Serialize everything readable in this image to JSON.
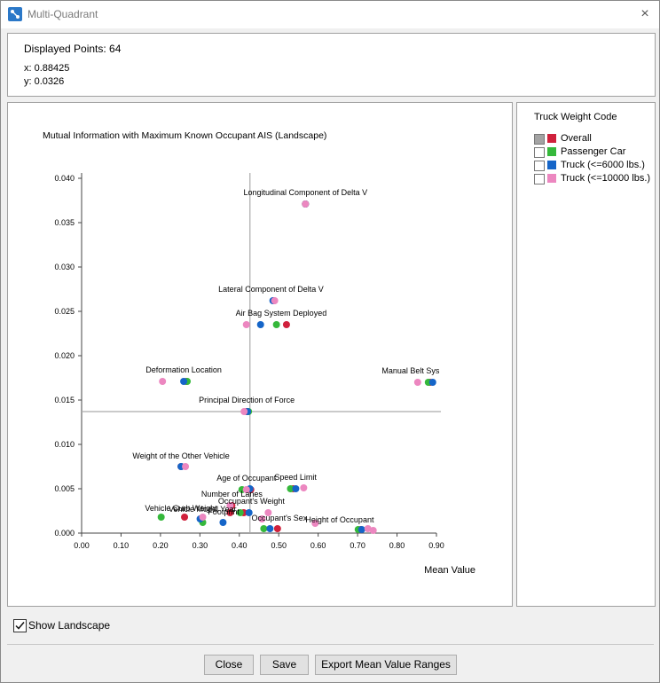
{
  "window": {
    "title": "Multi-Quadrant",
    "close_icon": "×"
  },
  "info": {
    "displayed_points": "Displayed Points: 64",
    "x": "x: 0.88425",
    "y": "y: 0.0326"
  },
  "legend": {
    "title": "Truck Weight Code",
    "items": [
      {
        "label": "Overall",
        "color": "#d0213c",
        "checked": "indeterminate"
      },
      {
        "label": "Passenger Car",
        "color": "#35b83b",
        "checked": false
      },
      {
        "label": "Truck (<=6000 lbs.)",
        "color": "#1565c8",
        "checked": false
      },
      {
        "label": "Truck (<=10000 lbs.)",
        "color": "#ec87c0",
        "checked": false
      }
    ]
  },
  "show_landscape": {
    "label": "Show Landscape",
    "checked": true
  },
  "buttons": {
    "close": "Close",
    "save": "Save",
    "export": "Export Mean Value Ranges"
  },
  "chart_data": {
    "type": "scatter",
    "title": "Mutual Information with Maximum Known Occupant AIS (Landscape)",
    "xlabel": "Mean Value",
    "ylabel": "",
    "xlim": [
      0.0,
      0.9
    ],
    "ylim": [
      0.0,
      0.04
    ],
    "x_ticks": [
      "0.00",
      "0.10",
      "0.20",
      "0.30",
      "0.40",
      "0.50",
      "0.60",
      "0.70",
      "0.80",
      "0.90"
    ],
    "y_ticks": [
      "0.000",
      "0.005",
      "0.010",
      "0.015",
      "0.020",
      "0.025",
      "0.030",
      "0.035",
      "0.040"
    ],
    "quadrant_lines": {
      "x": 0.427,
      "y": 0.0137
    },
    "grid": false,
    "legend": "right panel",
    "colors": {
      "Overall": "#d0213c",
      "Passenger Car": "#35b83b",
      "Truck (<=6000 lbs.)": "#1565c8",
      "Truck (<=10000 lbs.)": "#ec87c0"
    },
    "labels": [
      {
        "text": "Longitudinal Component of Delta V",
        "x": 0.5677,
        "y": 0.0381
      },
      {
        "text": "Lateral Component of Delta V",
        "x": 0.4803,
        "y": 0.0272
      },
      {
        "text": "Air Bag System Deployed",
        "x": 0.5061,
        "y": 0.0245
      },
      {
        "text": "Deformation Location",
        "x": 0.2589,
        "y": 0.0181
      },
      {
        "text": "Manual Belt Sys",
        "x": 0.8345,
        "y": 0.018
      },
      {
        "text": "Principal Direction of Force",
        "x": 0.4189,
        "y": 0.0147
      },
      {
        "text": "Weight of the Other Vehicle",
        "x": 0.2522,
        "y": 0.0084
      },
      {
        "text": "Age of Occupant",
        "x": 0.4179,
        "y": 0.0059
      },
      {
        "text": "Speed Limit",
        "x": 0.5426,
        "y": 0.006
      },
      {
        "text": "Number of Lanes",
        "x": 0.3811,
        "y": 0.0041
      },
      {
        "text": "Occupant's Weight",
        "x": 0.4306,
        "y": 0.0033
      },
      {
        "text": "Vehicle Curb Weight",
        "x": 0.2522,
        "y": 0.0025
      },
      {
        "text": "Vehicle Model Year",
        "x": 0.3065,
        "y": 0.0024
      },
      {
        "text": "Footprint",
        "x": 0.3602,
        "y": 0.0021
      },
      {
        "text": "Occupant's Sex",
        "x": 0.5016,
        "y": 0.0014
      },
      {
        "text": "Height of Occupant",
        "x": 0.6546,
        "y": 0.0012
      }
    ],
    "series": [
      {
        "name": "Overall",
        "points": [
          [
            0.5677,
            0.0371
          ],
          [
            0.4875,
            0.0262
          ],
          [
            0.5196,
            0.0235
          ],
          [
            0.2656,
            0.0171
          ],
          [
            0.8838,
            0.017
          ],
          [
            0.4189,
            0.0137
          ],
          [
            0.2522,
            0.0075
          ],
          [
            0.4291,
            0.0049
          ],
          [
            0.5365,
            0.005
          ],
          [
            0.3811,
            0.0031
          ],
          [
            0.3766,
            0.0023
          ],
          [
            0.2611,
            0.0018
          ],
          [
            0.3027,
            0.0016
          ],
          [
            0.4112,
            0.0023
          ],
          [
            0.4969,
            0.0005
          ],
          [
            0.7082,
            0.0004
          ]
        ]
      },
      {
        "name": "Passenger Car",
        "points": [
          [
            0.5677,
            0.0371
          ],
          [
            0.4942,
            0.0235
          ],
          [
            0.2678,
            0.0171
          ],
          [
            0.8793,
            0.017
          ],
          [
            0.4234,
            0.0137
          ],
          [
            0.4067,
            0.0049
          ],
          [
            0.5298,
            0.005
          ],
          [
            0.4022,
            0.0023
          ],
          [
            0.2018,
            0.0018
          ],
          [
            0.3072,
            0.0012
          ],
          [
            0.4621,
            0.0005
          ],
          [
            0.7015,
            0.0004
          ]
        ]
      },
      {
        "name": "Truck (<=6000 lbs.)",
        "points": [
          [
            0.5677,
            0.0371
          ],
          [
            0.4852,
            0.0262
          ],
          [
            0.4539,
            0.0235
          ],
          [
            0.2589,
            0.0171
          ],
          [
            0.8905,
            0.017
          ],
          [
            0.4211,
            0.0137
          ],
          [
            0.2522,
            0.0075
          ],
          [
            0.4268,
            0.005
          ],
          [
            0.5432,
            0.005
          ],
          [
            0.4246,
            0.0023
          ],
          [
            0.3005,
            0.0016
          ],
          [
            0.3587,
            0.0012
          ],
          [
            0.4778,
            0.0005
          ],
          [
            0.7104,
            0.0004
          ]
        ]
      },
      {
        "name": "Truck (<=10000 lbs.)",
        "points": [
          [
            0.5677,
            0.0371
          ],
          [
            0.4897,
            0.0262
          ],
          [
            0.4179,
            0.0235
          ],
          [
            0.2052,
            0.0171
          ],
          [
            0.8524,
            0.017
          ],
          [
            0.4122,
            0.0137
          ],
          [
            0.2634,
            0.0075
          ],
          [
            0.4179,
            0.0049
          ],
          [
            0.5633,
            0.0051
          ],
          [
            0.3766,
            0.0031
          ],
          [
            0.4733,
            0.0023
          ],
          [
            0.3072,
            0.0018
          ],
          [
            0.4576,
            0.0016
          ],
          [
            0.5924,
            0.0011
          ],
          [
            0.7261,
            0.0005
          ],
          [
            0.7396,
            0.0003
          ]
        ]
      }
    ]
  }
}
